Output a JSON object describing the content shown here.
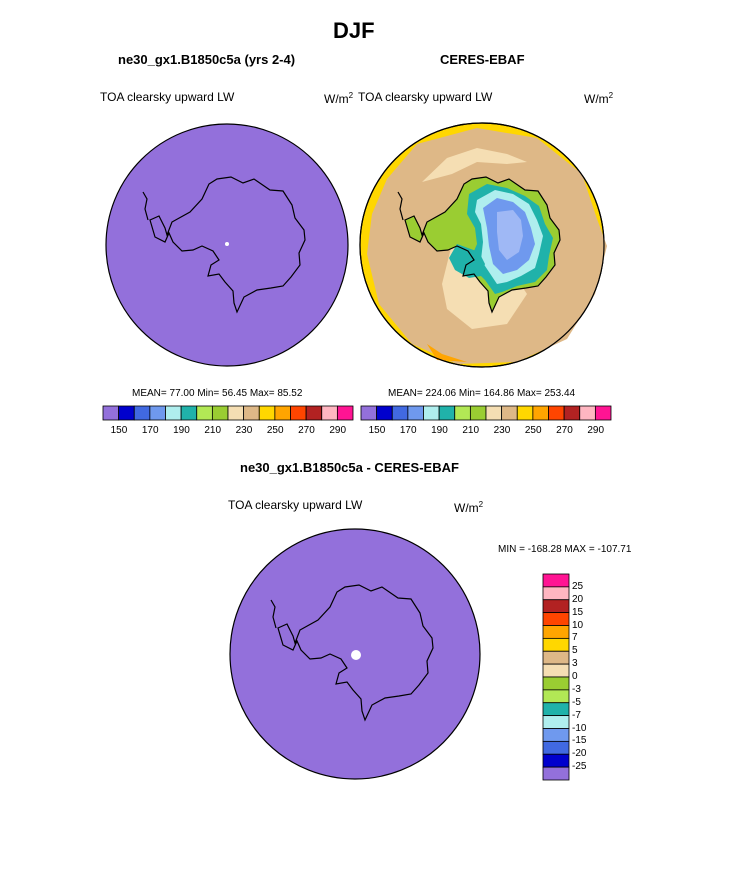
{
  "page": {
    "title": "DJF"
  },
  "colors": {
    "scale_abs": [
      "#9370db",
      "#0000cd",
      "#4169e1",
      "#6f99ee",
      "#afeeee",
      "#20b2aa",
      "#b2e855",
      "#9acd32",
      "#f5deb3",
      "#deb887",
      "#ffd700",
      "#ffa500",
      "#ff4500",
      "#b22222",
      "#ffb6c1",
      "#ff1493"
    ],
    "scale_diff": [
      "#9370db",
      "#0000cd",
      "#4169e1",
      "#6f99ee",
      "#afeeee",
      "#20b2aa",
      "#b2e855",
      "#9acd32",
      "#f5deb3",
      "#deb887",
      "#ffd700",
      "#ffa500",
      "#ff4500",
      "#b22222",
      "#ffb6c1",
      "#ff1493"
    ]
  },
  "panels": {
    "model": {
      "title": "ne30_gx1.B1850c5a (yrs 2-4)",
      "variable": "TOA clearsky upward LW",
      "unit": "W/m",
      "unit_sup": "2",
      "stats": "MEAN=  77.00  Min=  56.45  Max=  85.52"
    },
    "obs": {
      "title": "CERES-EBAF",
      "variable": "TOA clearsky upward LW",
      "unit": "W/m",
      "unit_sup": "2",
      "stats": "MEAN= 224.06  Min= 164.86  Max= 253.44"
    },
    "diff": {
      "title": "ne30_gx1.B1850c5a - CERES-EBAF",
      "variable": "TOA clearsky upward LW",
      "unit": "W/m",
      "unit_sup": "2",
      "stats": "MIN = -168.28 MAX = -107.71"
    }
  },
  "chart_data": [
    {
      "type": "heatmap",
      "title": "ne30_gx1.B1850c5a (yrs 2-4)",
      "projection": "south-polar stereographic",
      "field": "TOA clearsky upward LW",
      "units": "W/m2",
      "mean": 77.0,
      "min": 56.45,
      "max": 85.52,
      "colorbar_orientation": "horizontal",
      "colorbar_tick_labels": [
        "150",
        "170",
        "190",
        "210",
        "230",
        "250",
        "270",
        "290"
      ]
    },
    {
      "type": "heatmap",
      "title": "CERES-EBAF",
      "projection": "south-polar stereographic",
      "field": "TOA clearsky upward LW",
      "units": "W/m2",
      "mean": 224.06,
      "min": 164.86,
      "max": 253.44,
      "colorbar_orientation": "horizontal",
      "colorbar_tick_labels": [
        "150",
        "170",
        "190",
        "210",
        "230",
        "250",
        "270",
        "290"
      ]
    },
    {
      "type": "heatmap",
      "title": "ne30_gx1.B1850c5a - CERES-EBAF",
      "projection": "south-polar stereographic",
      "field": "TOA clearsky upward LW",
      "units": "W/m2",
      "min": -168.28,
      "max": -107.71,
      "colorbar_orientation": "vertical",
      "colorbar_tick_labels": [
        "25",
        "20",
        "15",
        "10",
        "7",
        "5",
        "3",
        "0",
        "-3",
        "-5",
        "-7",
        "-10",
        "-15",
        "-20",
        "-25"
      ]
    }
  ]
}
